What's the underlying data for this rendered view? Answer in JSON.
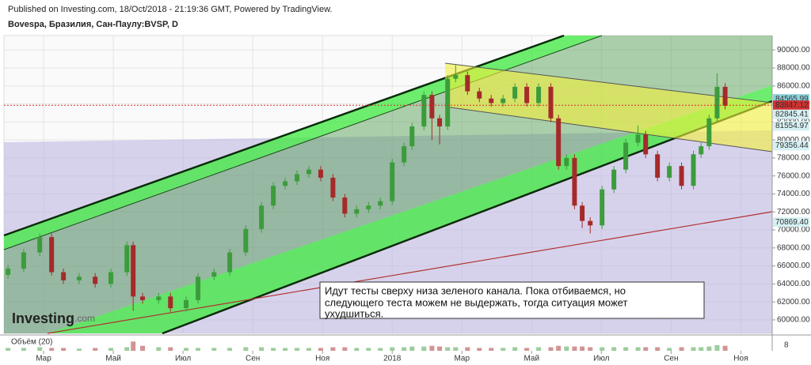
{
  "header": {
    "published": "Published on Investing.com, 18/Oct/2018 - 21:19:36 GMT, Powered by TradingView.",
    "symbol": "Bovespa, Бразилия, Сан-Паулу:BVSP, D"
  },
  "chart_data": {
    "type": "candlestick",
    "x": [
      -1.02,
      -0.57,
      -0.11,
      0.23,
      0.57,
      1.02,
      1.48,
      1.93,
      2.39,
      2.57,
      2.84,
      3.3,
      3.64,
      4.09,
      4.43,
      4.89,
      5.34,
      5.8,
      6.25,
      6.59,
      6.93,
      7.27,
      7.61,
      7.95,
      8.3,
      8.64,
      8.98,
      9.32,
      9.66,
      10.0,
      10.34,
      10.57,
      10.91,
      11.14,
      11.36,
      11.59,
      11.82,
      12.16,
      12.5,
      12.84,
      13.18,
      13.52,
      13.86,
      14.2,
      14.55,
      14.77,
      15.0,
      15.23,
      15.45,
      15.68,
      16.02,
      16.36,
      16.7,
      17.05,
      17.27,
      17.61,
      17.95,
      18.3,
      18.64,
      18.86,
      19.09,
      19.32,
      19.55
    ],
    "candles": [
      [
        65000,
        66100,
        64600,
        65700
      ],
      [
        65700,
        67900,
        65300,
        67500
      ],
      [
        67500,
        69600,
        67100,
        69200
      ],
      [
        69200,
        69600,
        64900,
        65300
      ],
      [
        65300,
        65700,
        64000,
        64400
      ],
      [
        64400,
        65200,
        64000,
        64800
      ],
      [
        64800,
        65200,
        63600,
        64000
      ],
      [
        64000,
        65700,
        63600,
        65300
      ],
      [
        65300,
        68700,
        64900,
        68300
      ],
      [
        68300,
        68700,
        61000,
        62600
      ],
      [
        62600,
        63000,
        61800,
        62200
      ],
      [
        62200,
        63000,
        61800,
        62600
      ],
      [
        62600,
        63000,
        60900,
        61300
      ],
      [
        61300,
        62600,
        60900,
        62200
      ],
      [
        62200,
        65200,
        61800,
        64800
      ],
      [
        64800,
        65700,
        64400,
        65300
      ],
      [
        65300,
        67900,
        64900,
        67500
      ],
      [
        67500,
        70500,
        67100,
        70100
      ],
      [
        70100,
        73100,
        69700,
        72700
      ],
      [
        72700,
        75300,
        72300,
        74900
      ],
      [
        74900,
        75800,
        74500,
        75400
      ],
      [
        75400,
        76600,
        75000,
        76200
      ],
      [
        76200,
        77100,
        75800,
        76700
      ],
      [
        76700,
        77100,
        75400,
        75800
      ],
      [
        75800,
        76200,
        73200,
        73600
      ],
      [
        73600,
        74000,
        71400,
        71800
      ],
      [
        71800,
        72700,
        71400,
        72300
      ],
      [
        72300,
        73100,
        71900,
        72700
      ],
      [
        72700,
        73600,
        72300,
        73200
      ],
      [
        73200,
        77900,
        72800,
        77500
      ],
      [
        77500,
        79700,
        77100,
        79300
      ],
      [
        79300,
        81900,
        78900,
        81500
      ],
      [
        81500,
        85400,
        81100,
        85000
      ],
      [
        85000,
        85400,
        80000,
        82400
      ],
      [
        82400,
        82800,
        79500,
        81500
      ],
      [
        81500,
        87200,
        81100,
        86800
      ],
      [
        86800,
        88300,
        86400,
        87200
      ],
      [
        87200,
        87600,
        85000,
        85400
      ],
      [
        85400,
        85800,
        84200,
        84600
      ],
      [
        84600,
        85000,
        83700,
        84100
      ],
      [
        84100,
        85000,
        83700,
        84600
      ],
      [
        84600,
        86300,
        84200,
        85900
      ],
      [
        85900,
        86300,
        83700,
        84100
      ],
      [
        84100,
        86300,
        83700,
        85900
      ],
      [
        85900,
        86300,
        82000,
        82400
      ],
      [
        82400,
        82800,
        76700,
        77100
      ],
      [
        77100,
        78400,
        76700,
        78000
      ],
      [
        78000,
        78400,
        72300,
        72700
      ],
      [
        72700,
        73100,
        70200,
        71000
      ],
      [
        71000,
        71400,
        69600,
        70500
      ],
      [
        70500,
        74900,
        70100,
        74500
      ],
      [
        74500,
        77100,
        74100,
        76700
      ],
      [
        76700,
        80100,
        76300,
        79700
      ],
      [
        79700,
        81600,
        79300,
        80600
      ],
      [
        80600,
        81000,
        78000,
        78400
      ],
      [
        78400,
        78800,
        75400,
        75800
      ],
      [
        75800,
        77500,
        75400,
        77100
      ],
      [
        77100,
        77500,
        74500,
        74900
      ],
      [
        74900,
        78800,
        74500,
        78400
      ],
      [
        78400,
        79700,
        78000,
        79300
      ],
      [
        79300,
        82800,
        78900,
        82400
      ],
      [
        82400,
        87400,
        82000,
        85900
      ],
      [
        85900,
        86300,
        83400,
        83800
      ]
    ],
    "up_color": "#3c9c3c",
    "down_color": "#a52a2a",
    "xlim": [
      -1.25,
      20.9
    ],
    "xticks": [
      {
        "value": 0,
        "label": "Мар"
      },
      {
        "value": 2,
        "label": "Май"
      },
      {
        "value": 4,
        "label": "Июл"
      },
      {
        "value": 6,
        "label": "Сен"
      },
      {
        "value": 8,
        "label": "Ноя"
      },
      {
        "value": 10,
        "label": "2018"
      },
      {
        "value": 12,
        "label": "Мар"
      },
      {
        "value": 14,
        "label": "Май"
      },
      {
        "value": 16,
        "label": "Июл"
      },
      {
        "value": 18,
        "label": "Сен"
      },
      {
        "value": 20,
        "label": "Ноя"
      }
    ],
    "ylim": [
      58500,
      91600
    ],
    "yticks": [
      {
        "value": 60000,
        "label": "60000.00"
      },
      {
        "value": 62000,
        "label": "62000.00"
      },
      {
        "value": 64000,
        "label": "64000.00"
      },
      {
        "value": 66000,
        "label": "66000.00"
      },
      {
        "value": 68000,
        "label": "68000.00"
      },
      {
        "value": 70000,
        "label": "70000.00"
      },
      {
        "value": 72000,
        "label": "72000.00"
      },
      {
        "value": 74000,
        "label": "74000.00"
      },
      {
        "value": 76000,
        "label": "76000.00"
      },
      {
        "value": 78000,
        "label": "78000.00"
      },
      {
        "value": 80000,
        "label": "80000.00"
      },
      {
        "value": 82000,
        "label": "82000.00"
      },
      {
        "value": 84000,
        "label": "84000.00"
      },
      {
        "value": 86000,
        "label": "86000.00"
      },
      {
        "value": 88000,
        "label": "88000.00"
      },
      {
        "value": 90000,
        "label": "90000.00"
      }
    ],
    "grid": true,
    "price_labels": [
      {
        "value": 84565.99,
        "label": "84565.99",
        "color": "#8fd3dc"
      },
      {
        "value": 83847.12,
        "label": "83847.12",
        "color": "#d32f2f",
        "line_style": "dotted"
      },
      {
        "value": 82845.41,
        "label": "82845.41",
        "color": "#d6f0f3"
      },
      {
        "value": 81554.97,
        "label": "81554.97",
        "color": "#d6f0f3"
      },
      {
        "value": 79356.44,
        "label": "79356.44",
        "color": "#d6f0f3"
      },
      {
        "value": 70869.4,
        "label": "70869.40",
        "color": "#d6f0f3"
      }
    ],
    "volume": {
      "label": "Объём (20)",
      "ylim": [
        0,
        20
      ],
      "yticks": [
        8
      ],
      "values": [
        4,
        4,
        5,
        4,
        4,
        3,
        4,
        4,
        5,
        13,
        7,
        5,
        5,
        4,
        4,
        4,
        4,
        5,
        5,
        4,
        4,
        4,
        4,
        4,
        5,
        5,
        4,
        4,
        4,
        5,
        5,
        6,
        6,
        7,
        6,
        5,
        5,
        5,
        4,
        4,
        4,
        5,
        4,
        5,
        5,
        7,
        6,
        6,
        6,
        5,
        5,
        5,
        5,
        5,
        5,
        5,
        4,
        5,
        5,
        5,
        6,
        8,
        7
      ]
    }
  },
  "annotation": [
    "Идут тесты сверху низа зеленого канала. Пока отбиваемся, но",
    "следующего теста можем не выдержать, тогда ситуация может",
    "ухудшиться."
  ],
  "logo": {
    "text": "Investing",
    "suffix": ".com"
  }
}
